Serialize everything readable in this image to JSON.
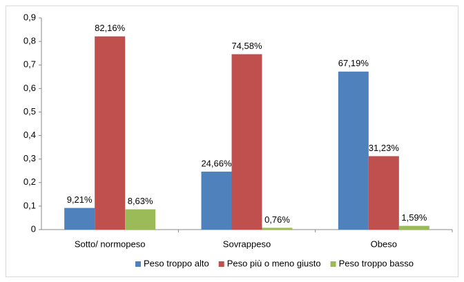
{
  "chart_data": {
    "type": "bar",
    "categories": [
      "Sotto/ normopeso",
      "Sovrappeso",
      "Obeso"
    ],
    "series": [
      {
        "name": "Peso troppo alto",
        "color": "#4f81bd",
        "values": [
          0.0921,
          0.2466,
          0.6719
        ],
        "value_labels": [
          "9,21%",
          "24,66%",
          "67,19%"
        ]
      },
      {
        "name": "Peso più o meno giusto",
        "color": "#c0504d",
        "values": [
          0.8216,
          0.7458,
          0.3123
        ],
        "value_labels": [
          "82,16%",
          "74,58%",
          "31,23%"
        ]
      },
      {
        "name": "Peso troppo basso",
        "color": "#9bbb59",
        "values": [
          0.0863,
          0.0076,
          0.0159
        ],
        "value_labels": [
          "8,63%",
          "0,76%",
          "1,59%"
        ]
      }
    ],
    "ylim": [
      0,
      0.9
    ],
    "yticks": [
      0,
      {
        "value": 0.1,
        "label": "0,1"
      },
      {
        "value": 0.2,
        "label": "0,2"
      },
      {
        "value": 0.3,
        "label": "0,3"
      },
      {
        "value": 0.4,
        "label": "0,4"
      },
      {
        "value": 0.5,
        "label": "0,5"
      },
      {
        "value": 0.6,
        "label": "0,6"
      },
      {
        "value": 0.7,
        "label": "0,7"
      },
      {
        "value": 0.8,
        "label": "0,8"
      },
      {
        "value": 0.9,
        "label": "0,9"
      }
    ],
    "legend": "bottom"
  }
}
